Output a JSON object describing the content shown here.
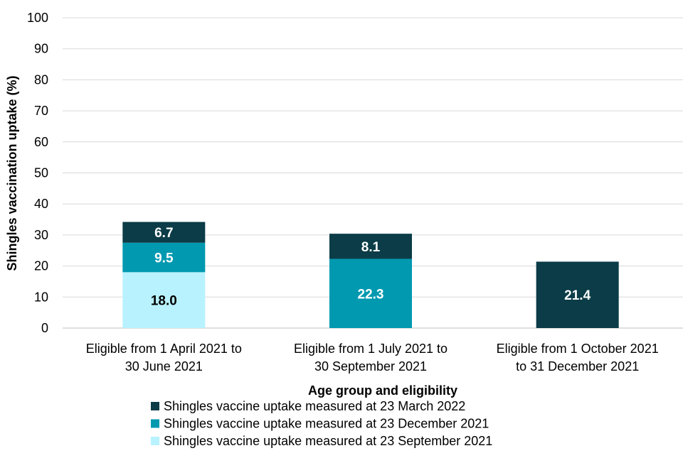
{
  "chart_data": {
    "type": "bar",
    "stacked": true,
    "title": "",
    "xlabel": "Age group and eligibility",
    "ylabel": "Shingles vaccination uptake (%)",
    "ylim": [
      0,
      100
    ],
    "yticks": [
      0,
      10,
      20,
      30,
      40,
      50,
      60,
      70,
      80,
      90,
      100
    ],
    "grid": true,
    "legend_position": "bottom",
    "categories": [
      [
        "Eligible from 1 April 2021 to",
        "30 June 2021"
      ],
      [
        "Eligible from 1 July 2021 to",
        "30 September 2021"
      ],
      [
        "Eligible from 1 October 2021",
        "to 31 December 2021"
      ]
    ],
    "series": [
      {
        "name": "Shingles vaccine uptake measured at 23 September 2021",
        "color": "#b8f2ff",
        "label_color": "#000000",
        "values": [
          18.0,
          null,
          null
        ]
      },
      {
        "name": "Shingles vaccine uptake measured at 23 December 2021",
        "color": "#0099b0",
        "label_color": "#ffffff",
        "values": [
          9.5,
          22.3,
          null
        ]
      },
      {
        "name": "Shingles vaccine uptake measured at 23 March 2022",
        "color": "#0b3c47",
        "label_color": "#ffffff",
        "values": [
          6.7,
          8.1,
          21.4
        ]
      }
    ],
    "legend_order": [
      2,
      1,
      0
    ]
  }
}
